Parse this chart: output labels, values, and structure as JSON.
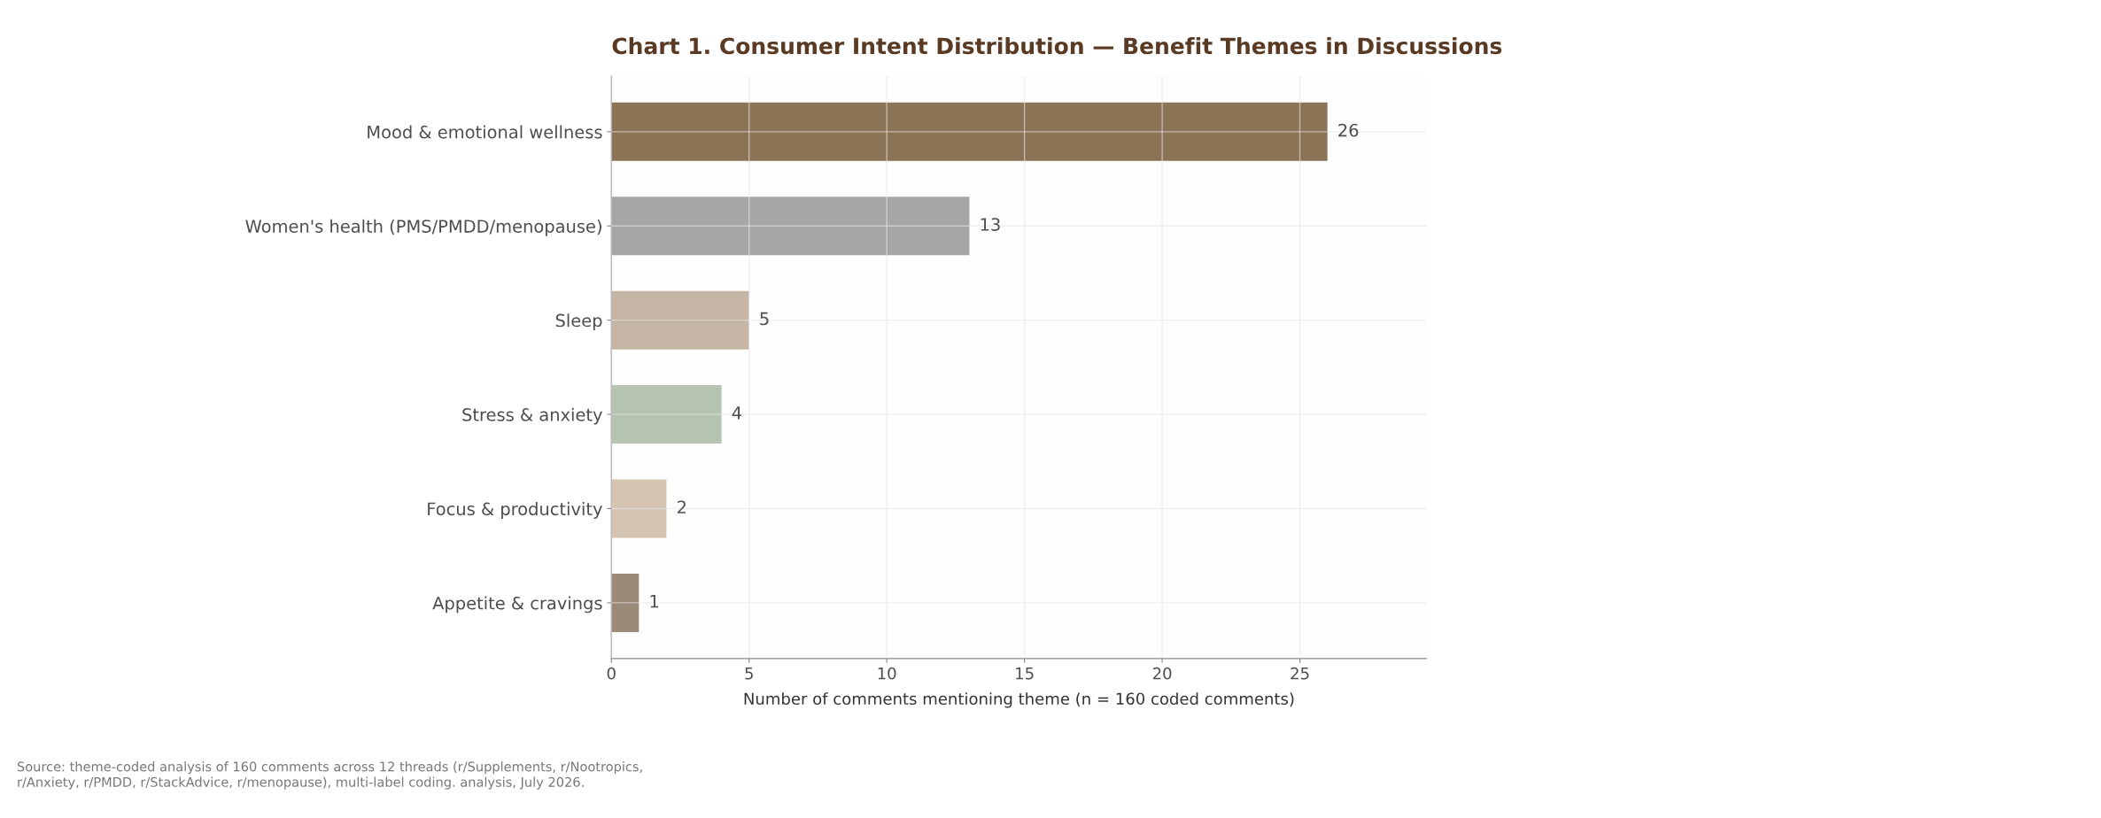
{
  "chart_data": {
    "type": "bar",
    "orientation": "horizontal",
    "title": "Chart 1. Consumer Intent Distribution — Benefit Themes in Discussions",
    "xlabel": "Number of comments mentioning theme (n = 160 coded comments)",
    "categories": [
      "Mood & emotional wellness",
      "Women's health (PMS/PMDD/menopause)",
      "Sleep",
      "Stress & anxiety",
      "Focus & productivity",
      "Appetite & cravings"
    ],
    "values": [
      26,
      13,
      5,
      4,
      2,
      1
    ],
    "colors": [
      "#8b7355",
      "#a6a6a6",
      "#c4b5a5",
      "#b5c4b1",
      "#d4c4b0",
      "#9c8a78"
    ],
    "xlim": [
      0,
      29.6
    ],
    "xticks": [
      0,
      5,
      10,
      15,
      20,
      25
    ],
    "grid": true,
    "data_labels": true,
    "annotations": [
      "Source: theme-coded analysis of 160 comments across 12 threads (r/Supplements, r/Nootropics,\nr/Anxiety, r/PMDD, r/StackAdvice, r/menopause), multi-label coding. analysis, July 2026."
    ]
  }
}
